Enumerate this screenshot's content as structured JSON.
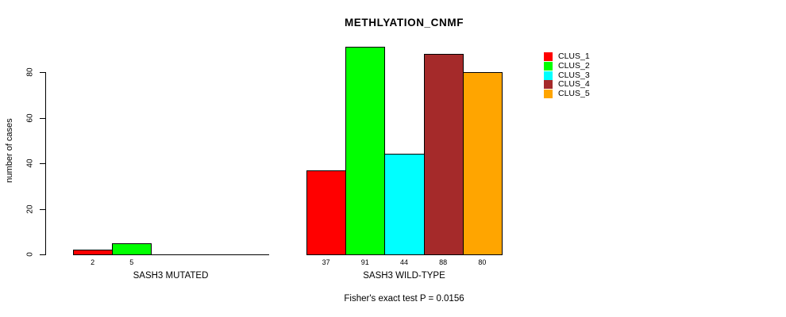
{
  "chart_data": {
    "type": "bar",
    "title": "METHLYATION_CNMF",
    "xlabel": "",
    "ylabel": "number of cases",
    "annotation": "Fisher's exact test P = 0.0156",
    "ylim": [
      0,
      91
    ],
    "yticks": [
      0,
      20,
      40,
      60,
      80
    ],
    "grid": false,
    "legend_position": "right",
    "series_names": [
      "CLUS_1",
      "CLUS_2",
      "CLUS_3",
      "CLUS_4",
      "CLUS_5"
    ],
    "series_colors": [
      "#ff0000",
      "#00ff00",
      "#00ffff",
      "#a52a2a",
      "#ffa500"
    ],
    "groups": [
      {
        "label": "SASH3 MUTATED",
        "values": [
          2,
          5,
          0,
          0,
          0
        ]
      },
      {
        "label": "SASH3 WILD-TYPE",
        "values": [
          37,
          91,
          44,
          88,
          80
        ]
      }
    ]
  }
}
